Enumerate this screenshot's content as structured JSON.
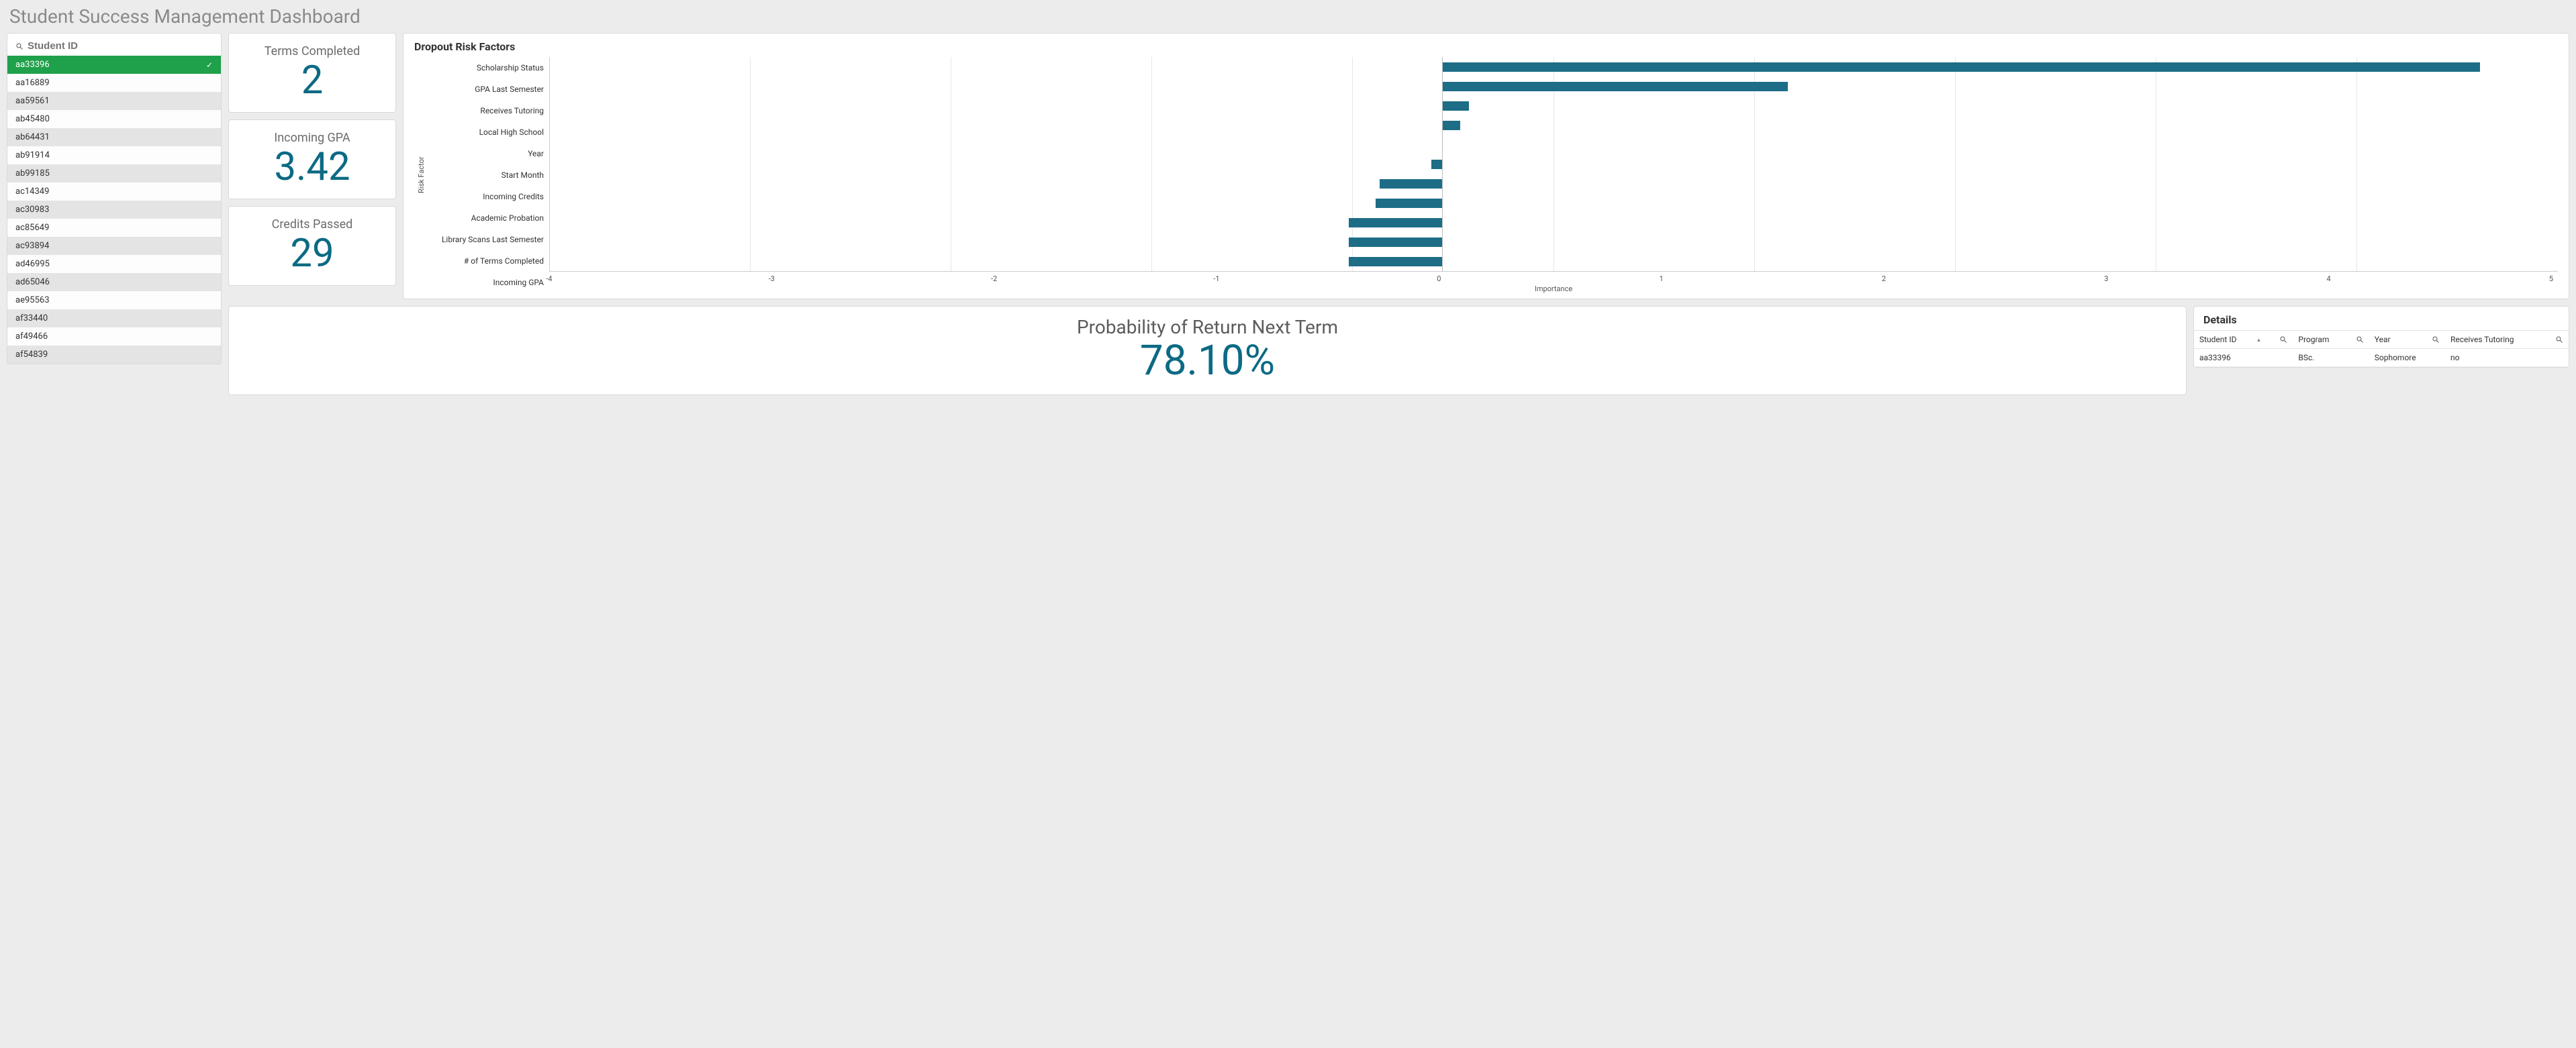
{
  "page": {
    "title": "Student Success Management Dashboard"
  },
  "search": {
    "placeholder": "Student ID"
  },
  "students": {
    "selected_index": 0,
    "items": [
      "aa33396",
      "aa16889",
      "aa59561",
      "ab45480",
      "ab64431",
      "ab91914",
      "ab99185",
      "ac14349",
      "ac30983",
      "ac85649",
      "ac93894",
      "ad46995",
      "ad65046",
      "ae95563",
      "af33440",
      "af49466",
      "af54839"
    ]
  },
  "kpis": {
    "terms_completed": {
      "label": "Terms Completed",
      "value": "2"
    },
    "incoming_gpa": {
      "label": "Incoming GPA",
      "value": "3.42"
    },
    "credits_passed": {
      "label": "Credits Passed",
      "value": "29"
    }
  },
  "probability": {
    "label": "Probability of Return Next Term",
    "value": "78.10%"
  },
  "risk_chart": {
    "title": "Dropout Risk Factors",
    "y_axis_label": "Risk Factor",
    "x_axis_label": "Importance",
    "type": "bar-horizontal",
    "xlim": [
      -4,
      5
    ],
    "xtick_step": 1,
    "bar_color": "#1d6d87",
    "grid_color": "#e6e6e6",
    "background_color": "#ffffff",
    "label_fontsize": 12,
    "factors": [
      {
        "name": "Scholarship Status",
        "value": 4.65
      },
      {
        "name": "GPA Last Semester",
        "value": 1.55
      },
      {
        "name": "Receives Tutoring",
        "value": 0.12
      },
      {
        "name": "Local High School",
        "value": 0.08
      },
      {
        "name": "Year",
        "value": 0.0
      },
      {
        "name": "Start Month",
        "value": -0.05
      },
      {
        "name": "Incoming Credits",
        "value": -0.28
      },
      {
        "name": "Academic Probation",
        "value": -0.3
      },
      {
        "name": "Library Scans Last Semester",
        "value": -0.42
      },
      {
        "name": "# of Terms Completed",
        "value": -0.42
      },
      {
        "name": "Incoming GPA",
        "value": -0.42
      }
    ]
  },
  "details": {
    "title": "Details",
    "columns": [
      "Student ID",
      "Program",
      "Year",
      "Receives Tutoring"
    ],
    "sorted_column_index": 0,
    "rows": [
      [
        "aa33396",
        "BSc.",
        "Sophomore",
        "no"
      ]
    ]
  },
  "colors": {
    "accent_teal": "#0c6a84",
    "selected_green": "#1fa04a",
    "page_bg": "#ececec",
    "panel_border": "#d9d9d9"
  }
}
